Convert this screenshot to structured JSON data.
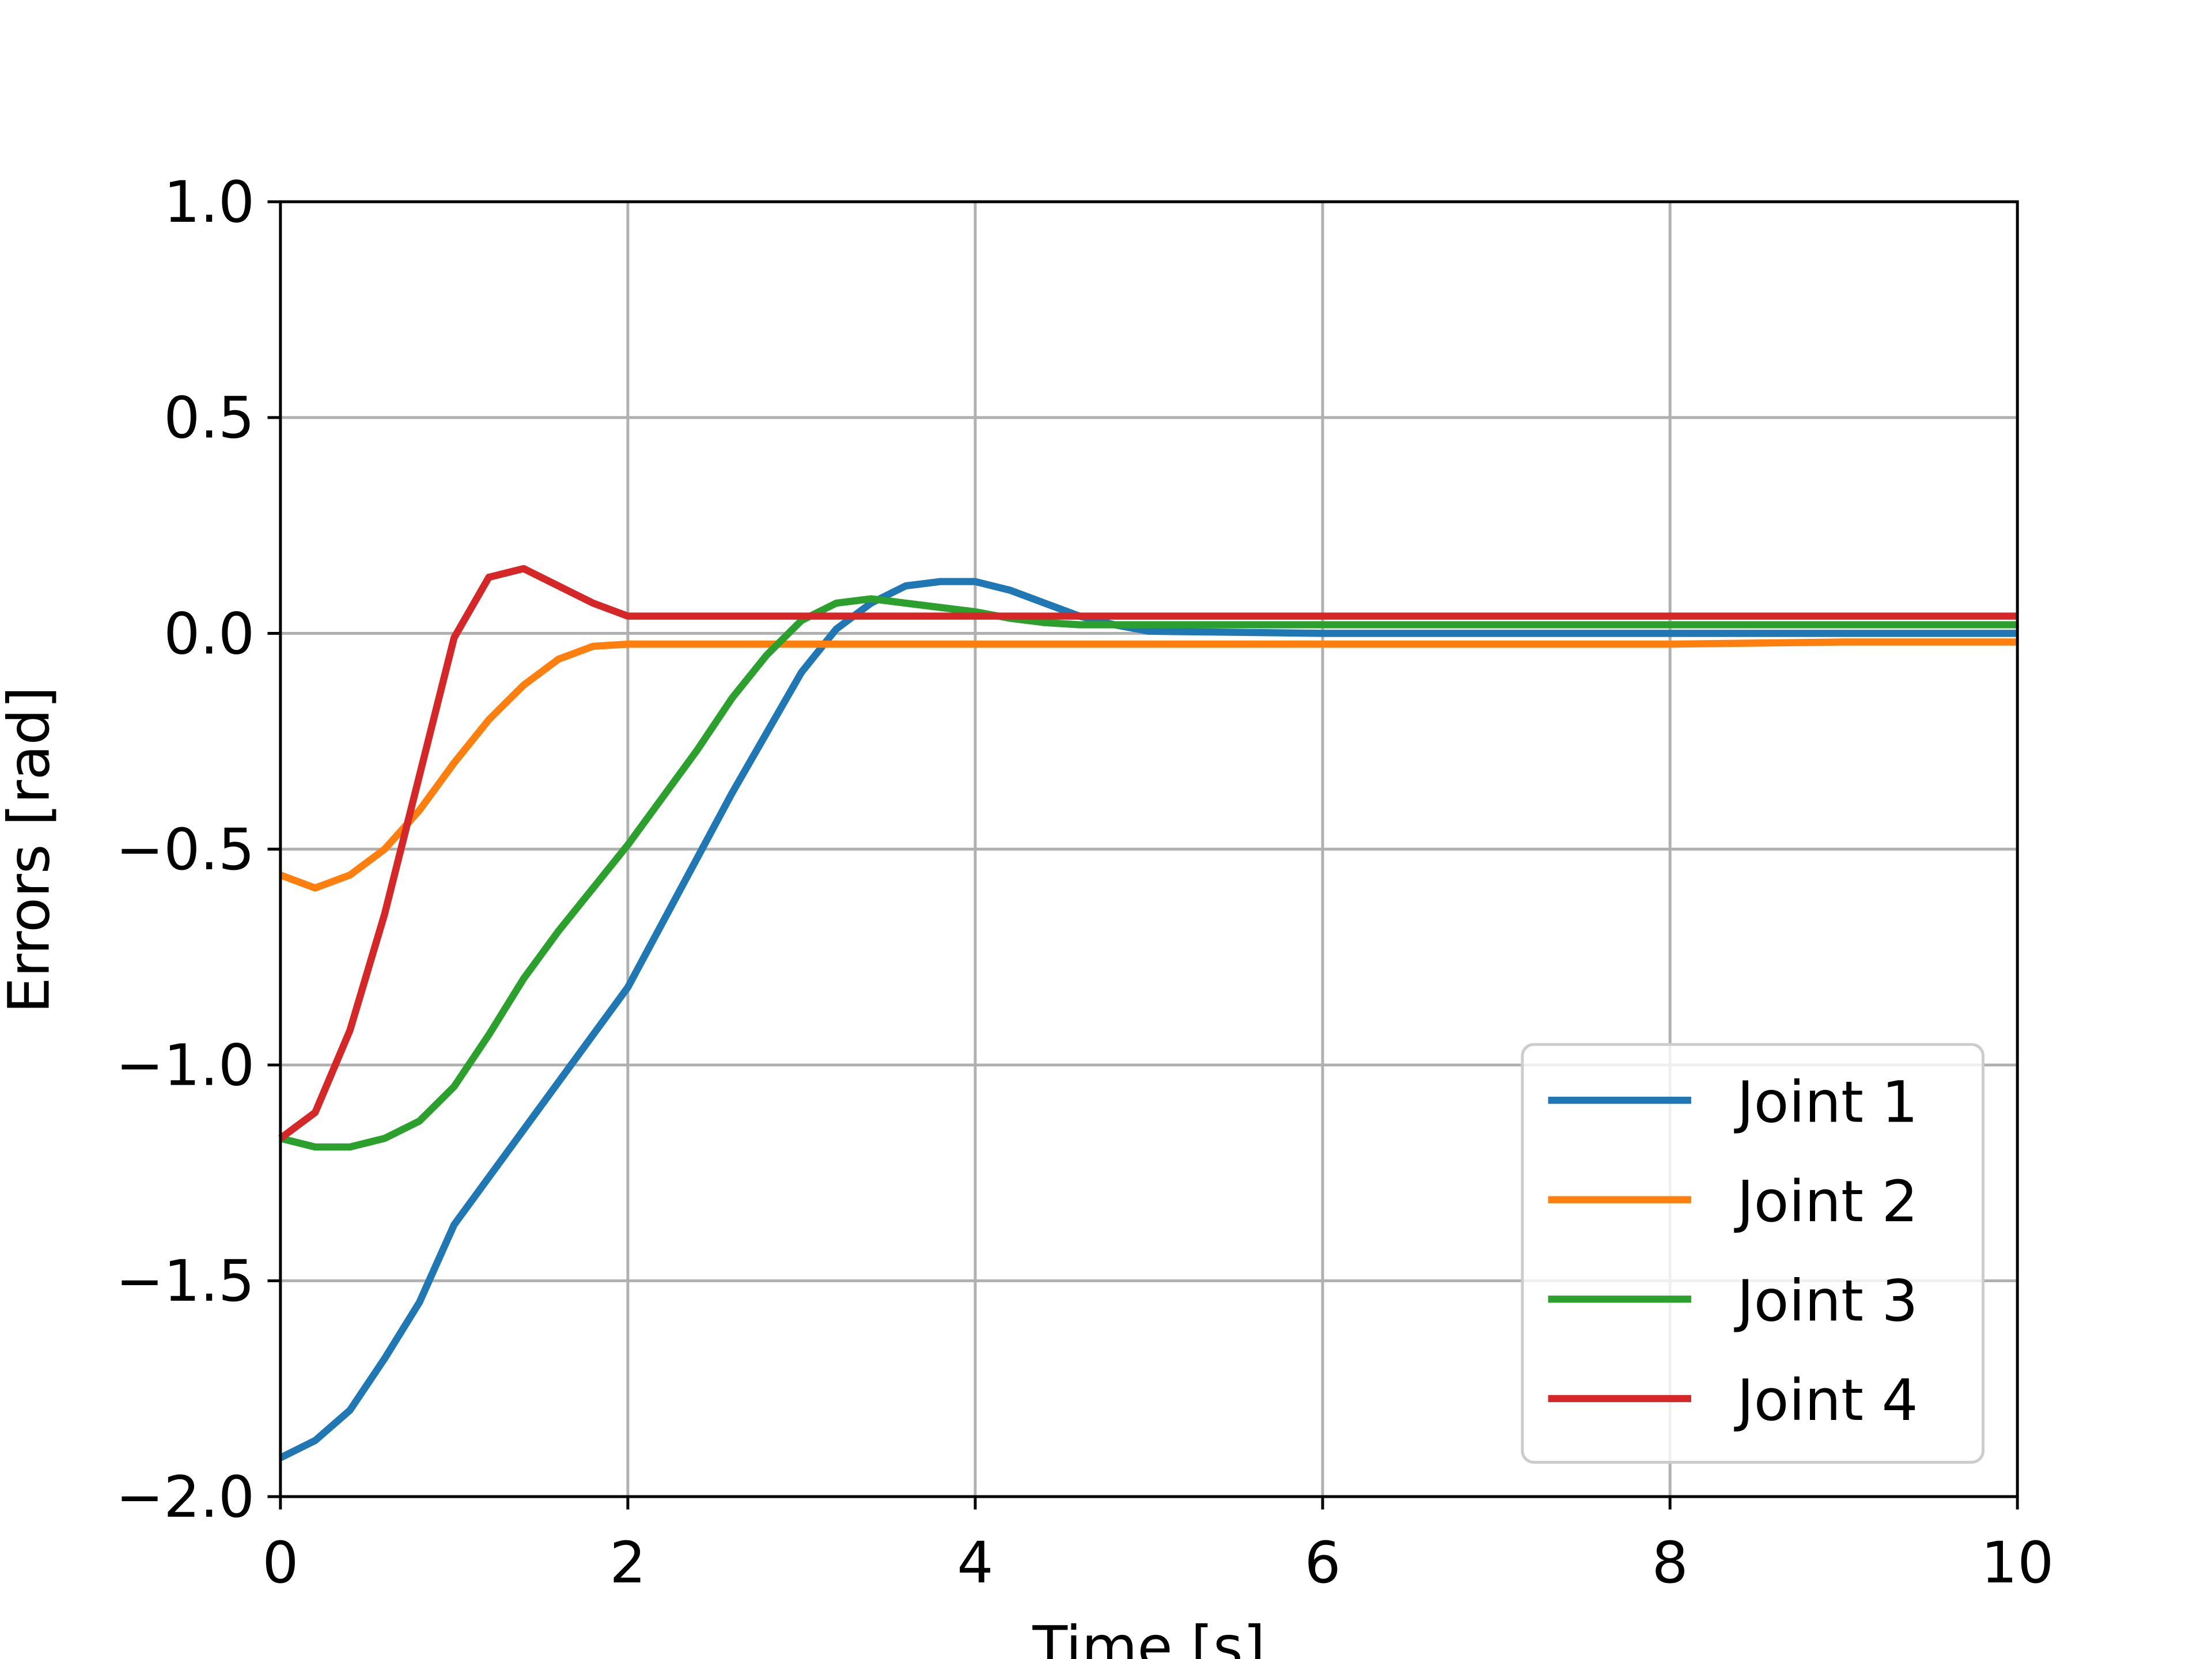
{
  "chart_data": {
    "type": "line",
    "xlabel": "Time [s]",
    "ylabel": "Errors [rad]",
    "x": [
      0,
      0.2,
      0.4,
      0.6,
      0.8,
      1.0,
      1.2,
      1.4,
      1.6,
      1.8,
      2.0,
      2.2,
      2.4,
      2.6,
      2.8,
      3.0,
      3.2,
      3.4,
      3.6,
      3.8,
      4.0,
      4.2,
      4.4,
      4.6,
      4.8,
      5.0,
      6,
      7,
      8,
      9,
      10
    ],
    "series": [
      {
        "name": "Joint 1",
        "color": "#1f77b4",
        "values": [
          -1.91,
          -1.87,
          -1.8,
          -1.68,
          -1.55,
          -1.37,
          -1.26,
          -1.15,
          -1.04,
          -0.93,
          -0.82,
          -0.67,
          -0.52,
          -0.37,
          -0.23,
          -0.09,
          0.01,
          0.07,
          0.11,
          0.12,
          0.12,
          0.1,
          0.07,
          0.04,
          0.02,
          0.005,
          0,
          0,
          0,
          0,
          0
        ]
      },
      {
        "name": "Joint 2",
        "color": "#ff7f0e",
        "values": [
          -0.56,
          -0.59,
          -0.56,
          -0.5,
          -0.41,
          -0.3,
          -0.2,
          -0.12,
          -0.06,
          -0.03,
          -0.025,
          -0.025,
          -0.025,
          -0.025,
          -0.025,
          -0.025,
          -0.025,
          -0.025,
          -0.025,
          -0.025,
          -0.025,
          -0.025,
          -0.025,
          -0.025,
          -0.025,
          -0.025,
          -0.025,
          -0.025,
          -0.025,
          -0.02,
          -0.02
        ]
      },
      {
        "name": "Joint 3",
        "color": "#2ca02c",
        "values": [
          -1.17,
          -1.19,
          -1.19,
          -1.17,
          -1.13,
          -1.05,
          -0.93,
          -0.8,
          -0.69,
          -0.59,
          -0.49,
          -0.38,
          -0.27,
          -0.15,
          -0.05,
          0.03,
          0.07,
          0.08,
          0.07,
          0.06,
          0.05,
          0.035,
          0.025,
          0.02,
          0.02,
          0.02,
          0.02,
          0.02,
          0.02,
          0.02,
          0.02
        ]
      },
      {
        "name": "Joint 4",
        "color": "#d62728",
        "values": [
          -1.17,
          -1.11,
          -0.92,
          -0.65,
          -0.33,
          -0.01,
          0.13,
          0.15,
          0.11,
          0.07,
          0.04,
          0.04,
          0.04,
          0.04,
          0.04,
          0.04,
          0.04,
          0.04,
          0.04,
          0.04,
          0.04,
          0.04,
          0.04,
          0.04,
          0.04,
          0.04,
          0.04,
          0.04,
          0.04,
          0.04,
          0.04
        ]
      }
    ],
    "xlim": [
      0,
      10
    ],
    "xticks": [
      0,
      2,
      4,
      6,
      8,
      10
    ],
    "ylim": [
      -2.0,
      1.0
    ],
    "yticks": [
      {
        "value": -2.0,
        "label": "−2.0"
      },
      {
        "value": -1.5,
        "label": "−1.5"
      },
      {
        "value": -1.0,
        "label": "−1.0"
      },
      {
        "value": -0.5,
        "label": "−0.5"
      },
      {
        "value": 0.0,
        "label": "0.0"
      },
      {
        "value": 0.5,
        "label": "0.5"
      },
      {
        "value": 1.0,
        "label": "1.0"
      }
    ],
    "grid": true,
    "legend": "lower right"
  }
}
